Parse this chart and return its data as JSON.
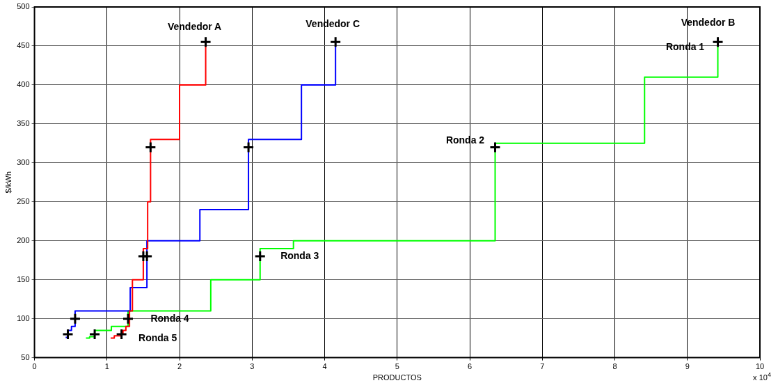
{
  "chart_data": {
    "type": "step",
    "xlabel": "PRODUCTOS",
    "ylabel": "$/kWh",
    "xlim": [
      0,
      10
    ],
    "xticks": [
      0,
      1,
      2,
      3,
      4,
      5,
      6,
      7,
      8,
      9,
      10
    ],
    "ylim": [
      50,
      500
    ],
    "yticks": [
      50,
      100,
      150,
      200,
      250,
      300,
      350,
      400,
      450,
      500
    ],
    "grid": true,
    "legend": false,
    "line_style": "solid",
    "series": [
      {
        "color": "#ff0000",
        "marker": "none",
        "x": [
          1.05,
          1.1,
          1.2,
          1.22,
          1.26,
          1.31,
          1.35,
          1.5,
          1.56,
          1.6,
          2.0,
          2.36
        ],
        "values": [
          75,
          78,
          80,
          85,
          90,
          110,
          150,
          190,
          250,
          330,
          400,
          455
        ]
      },
      {
        "color": "#0000ff",
        "marker": "none",
        "x": [
          0.43,
          0.46,
          0.51,
          0.56,
          1.32,
          1.55,
          2.28,
          2.95,
          3.68,
          4.15
        ],
        "values": [
          76,
          85,
          90,
          110,
          140,
          200,
          240,
          330,
          400,
          455
        ]
      },
      {
        "color": "#00ff00",
        "marker": "none",
        "x": [
          0.71,
          0.76,
          0.83,
          1.06,
          1.29,
          2.43,
          3.11,
          3.57,
          6.35,
          8.41,
          9.42
        ],
        "values": [
          75,
          77,
          85,
          90,
          110,
          150,
          190,
          200,
          325,
          410,
          455
        ]
      },
      {
        "type": "scatter",
        "color": "#000000",
        "marker": "cross",
        "x": [
          2.36,
          4.15,
          9.42,
          1.6,
          2.95,
          6.35,
          1.5,
          1.55,
          3.11,
          0.56,
          1.29,
          0.46,
          0.83,
          1.2
        ],
        "values": [
          455,
          455,
          455,
          320,
          320,
          320,
          180,
          180,
          180,
          100,
          100,
          80,
          80,
          80
        ]
      }
    ],
    "annotations": [
      {
        "text": "Vendedor A",
        "x": 2.36,
        "y": 455
      },
      {
        "text": "Vendedor C",
        "x": 4.15,
        "y": 455
      },
      {
        "text": "Vendedor B",
        "x": 9.42,
        "y": 455
      },
      {
        "text": "Ronda 1",
        "x": 9.42,
        "y": 455
      },
      {
        "text": "Ronda 2",
        "x": 6.35,
        "y": 320
      },
      {
        "text": "Ronda 3",
        "x": 3.11,
        "y": 180
      },
      {
        "text": "Ronda 4",
        "x": 1.29,
        "y": 100
      },
      {
        "text": "Ronda 5",
        "x": 1.2,
        "y": 80
      },
      "x 10$^{4}$"
    ]
  }
}
